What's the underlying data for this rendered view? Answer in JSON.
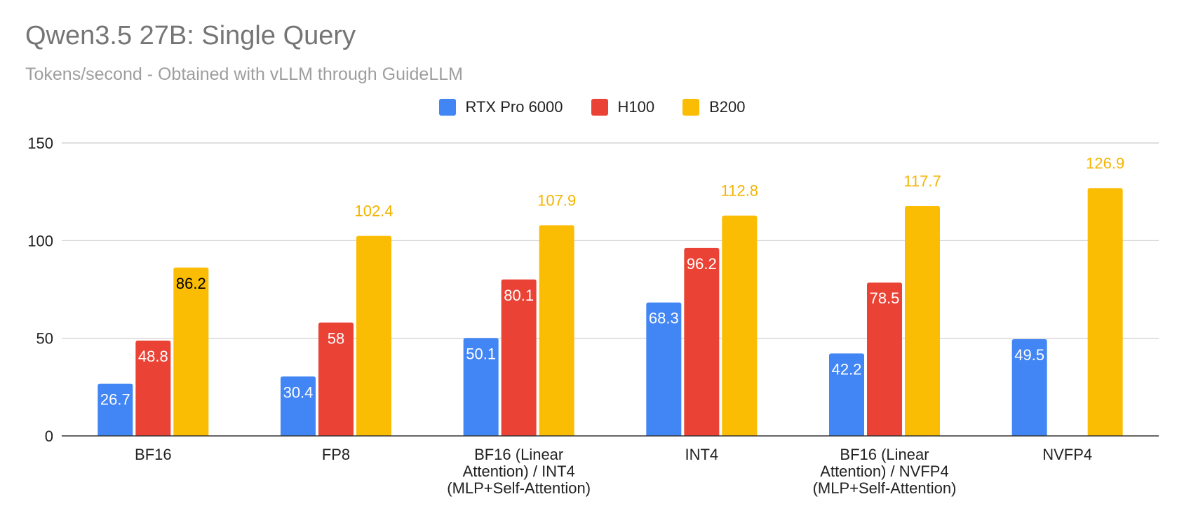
{
  "chart_data": {
    "type": "bar",
    "title": "Qwen3.5 27B: Single Query",
    "subtitle": "Tokens/second - Obtained with vLLM through GuideLLM",
    "categories": [
      [
        "BF16"
      ],
      [
        "FP8"
      ],
      [
        "BF16 (Linear",
        "Attention) / INT4",
        "(MLP+Self-Attention)"
      ],
      [
        "INT4"
      ],
      [
        "BF16 (Linear",
        "Attention) / NVFP4",
        "(MLP+Self-Attention)"
      ],
      [
        "NVFP4"
      ]
    ],
    "series": [
      {
        "name": "RTX Pro 6000",
        "color": "#4285f4",
        "label_color": "#ffffff",
        "values": [
          26.7,
          30.4,
          50.1,
          68.3,
          42.2,
          49.5
        ]
      },
      {
        "name": "H100",
        "color": "#ea4335",
        "label_color": "#ffffff",
        "values": [
          48.8,
          58,
          80.1,
          96.2,
          78.5,
          null
        ]
      },
      {
        "name": "B200",
        "color": "#fbbc04",
        "label_color": "#000000",
        "label_color_outside": "#f4b400",
        "values": [
          86.2,
          102.4,
          107.9,
          112.8,
          117.7,
          126.9
        ]
      }
    ],
    "data_labels": [
      [
        "26.7",
        "30.4",
        "50.1",
        "68.3",
        "42.2",
        "49.5"
      ],
      [
        "48.8",
        "58",
        "80.1",
        "96.2",
        "78.5",
        ""
      ],
      [
        "86.2",
        "102.4",
        "107.9",
        "112.8",
        "117.7",
        "126.9"
      ]
    ],
    "y_ticks": [
      "0",
      "50",
      "100",
      "150"
    ],
    "ylim": [
      0,
      150
    ],
    "grid": true,
    "legend_position": "top-center"
  }
}
